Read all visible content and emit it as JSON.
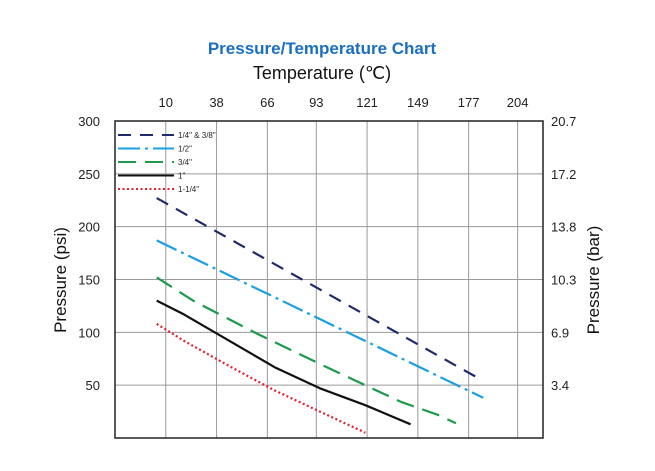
{
  "chart_data": {
    "type": "line",
    "title": "Pressure/Temperature Chart",
    "subtitle": "Temperature (℃)",
    "xlabel": "Temperature (℃)",
    "ylabel": "Pressure (psi)",
    "y2label": "Pressure (bar)",
    "xlim": [
      -18,
      218
    ],
    "ylim": [
      0,
      300
    ],
    "x_ticks": [
      "10",
      "38",
      "66",
      "93",
      "121",
      "149",
      "177",
      "204"
    ],
    "x_tick_values": [
      10,
      38,
      66,
      93,
      121,
      149,
      177,
      204
    ],
    "y_ticks": [
      "300",
      "250",
      "200",
      "150",
      "100",
      "50"
    ],
    "y_tick_values": [
      300,
      250,
      200,
      150,
      100,
      50
    ],
    "y2_ticks": [
      "20.7",
      "17.2",
      "13.8",
      "10.3",
      "6.9",
      "3.4"
    ],
    "y2_tick_values": [
      300,
      250,
      200,
      150,
      100,
      50
    ],
    "grid": true,
    "legend_position": "top-left",
    "series": [
      {
        "name": "1/4\" & 3/8\"",
        "color": "#1f2a6b",
        "dash": "13,9",
        "x": [
          5,
          182
        ],
        "y": [
          227,
          57
        ]
      },
      {
        "name": "1/2\"",
        "color": "#1aa0e0",
        "dash": "22,5,3,5",
        "x": [
          5,
          185
        ],
        "y": [
          187,
          38
        ]
      },
      {
        "name": "3/4\"",
        "color": "#1e9a4a",
        "dash": "18,9",
        "x": [
          5,
          25,
          60,
          100,
          140,
          160,
          170
        ],
        "y": [
          152,
          130,
          99,
          66,
          34,
          22,
          14
        ]
      },
      {
        "name": "1\"",
        "color": "#111111",
        "dash": "",
        "x": [
          5,
          20,
          45,
          70,
          95,
          120,
          145
        ],
        "y": [
          130,
          117,
          92,
          67,
          47,
          31,
          13
        ]
      },
      {
        "name": "1-1/4\"",
        "color": "#e0202a",
        "dash": "2,2.5",
        "x": [
          5,
          20,
          45,
          70,
          95,
          120
        ],
        "y": [
          108,
          92,
          68,
          45,
          25,
          5
        ]
      }
    ]
  }
}
